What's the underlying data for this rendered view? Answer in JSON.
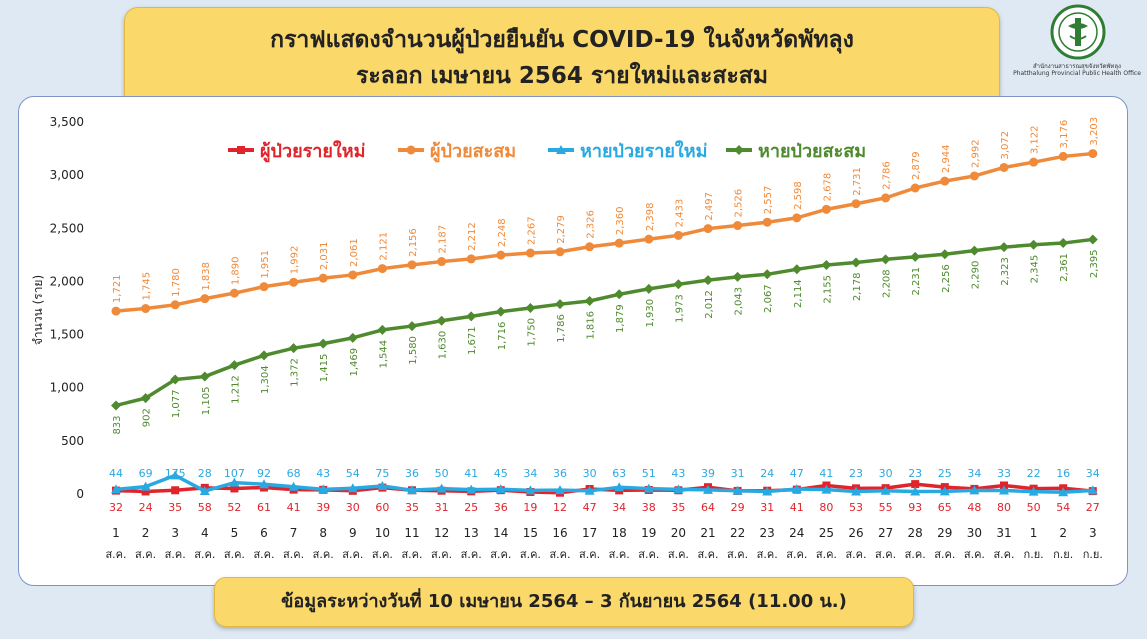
{
  "header": {
    "title_line1": "กราฟแสดงจำนวนผู้ป่วยยืนยัน COVID-19 ในจังหวัดพัทลุง",
    "title_line2": "ระลอก เมษายน 2564 รายใหม่และสะสม"
  },
  "logo": {
    "icon": "public-health-office-seal-icon",
    "caption_th": "สำนักงานสาธารณสุขจังหวัดพัทลุง",
    "caption_en": "Phatthalung Provincial Public Health Office"
  },
  "footer": {
    "text": "ข้อมูลระหว่างวันที่ 10 เมษายน 2564 – 3 กันยายน 2564 (11.00 น.)"
  },
  "chart_data": {
    "type": "line",
    "ylabel": "จำนวน (ราย)",
    "ylim": [
      0,
      3500
    ],
    "yticks": [
      "0",
      "500",
      "1,000",
      "1,500",
      "2,000",
      "2,500",
      "3,000",
      "3,500"
    ],
    "ytick_values": [
      0,
      500,
      1000,
      1500,
      2000,
      2500,
      3000,
      3500
    ],
    "categories_day": [
      "1",
      "2",
      "3",
      "4",
      "5",
      "6",
      "7",
      "8",
      "9",
      "10",
      "11",
      "12",
      "13",
      "14",
      "15",
      "16",
      "17",
      "18",
      "19",
      "20",
      "21",
      "22",
      "23",
      "24",
      "25",
      "26",
      "27",
      "28",
      "29",
      "30",
      "31",
      "1",
      "2",
      "3"
    ],
    "categories_month": [
      "ส.ค.",
      "ส.ค.",
      "ส.ค.",
      "ส.ค.",
      "ส.ค.",
      "ส.ค.",
      "ส.ค.",
      "ส.ค.",
      "ส.ค.",
      "ส.ค.",
      "ส.ค.",
      "ส.ค.",
      "ส.ค.",
      "ส.ค.",
      "ส.ค.",
      "ส.ค.",
      "ส.ค.",
      "ส.ค.",
      "ส.ค.",
      "ส.ค.",
      "ส.ค.",
      "ส.ค.",
      "ส.ค.",
      "ส.ค.",
      "ส.ค.",
      "ส.ค.",
      "ส.ค.",
      "ส.ค.",
      "ส.ค.",
      "ส.ค.",
      "ส.ค.",
      "ก.ย.",
      "ก.ย.",
      "ก.ย."
    ],
    "legend_position": "top",
    "grid": false,
    "series": [
      {
        "name": "ผู้ป่วยรายใหม่",
        "color": "#e0242b",
        "marker": "square",
        "values": [
          32,
          24,
          35,
          58,
          52,
          61,
          41,
          39,
          30,
          60,
          35,
          31,
          25,
          36,
          19,
          12,
          47,
          34,
          38,
          35,
          64,
          29,
          31,
          41,
          80,
          53,
          55,
          93,
          65,
          48,
          80,
          50,
          54,
          27
        ],
        "labels": [
          "32",
          "24",
          "35",
          "58",
          "52",
          "61",
          "41",
          "39",
          "30",
          "60",
          "35",
          "31",
          "25",
          "36",
          "19",
          "12",
          "47",
          "34",
          "38",
          "35",
          "64",
          "29",
          "31",
          "41",
          "80",
          "53",
          "55",
          "93",
          "65",
          "48",
          "80",
          "50",
          "54",
          "27"
        ]
      },
      {
        "name": "ผู้ป่วยสะสม",
        "color": "#ef8a3a",
        "marker": "circle",
        "values": [
          1721,
          1745,
          1780,
          1838,
          1890,
          1951,
          1992,
          2031,
          2061,
          2121,
          2156,
          2187,
          2212,
          2248,
          2267,
          2279,
          2326,
          2360,
          2398,
          2433,
          2497,
          2526,
          2557,
          2598,
          2678,
          2731,
          2786,
          2879,
          2944,
          2992,
          3072,
          3122,
          3176,
          3203
        ],
        "labels": [
          "1,721",
          "1,745",
          "1,780",
          "1,838",
          "1,890",
          "1,951",
          "1,992",
          "2,031",
          "2,061",
          "2,121",
          "2,156",
          "2,187",
          "2,212",
          "2,248",
          "2,267",
          "2,279",
          "2,326",
          "2,360",
          "2,398",
          "2,433",
          "2,497",
          "2,526",
          "2,557",
          "2,598",
          "2,678",
          "2,731",
          "2,786",
          "2,879",
          "2,944",
          "2,992",
          "3,072",
          "3,122",
          "3,176",
          "3,203"
        ]
      },
      {
        "name": "หายป่วยรายใหม่",
        "color": "#29a9e1",
        "marker": "triangle",
        "values": [
          44,
          69,
          175,
          28,
          107,
          92,
          68,
          43,
          54,
          75,
          36,
          50,
          41,
          45,
          34,
          36,
          30,
          63,
          51,
          43,
          39,
          31,
          24,
          47,
          41,
          23,
          30,
          23,
          25,
          34,
          33,
          22,
          16,
          34
        ],
        "labels": [
          "44",
          "69",
          "175",
          "28",
          "107",
          "92",
          "68",
          "43",
          "54",
          "75",
          "36",
          "50",
          "41",
          "45",
          "34",
          "36",
          "30",
          "63",
          "51",
          "43",
          "39",
          "31",
          "24",
          "47",
          "41",
          "23",
          "30",
          "23",
          "25",
          "34",
          "33",
          "22",
          "16",
          "34"
        ]
      },
      {
        "name": "หายป่วยสะสม",
        "color": "#4f8a2e",
        "marker": "diamond",
        "values": [
          833,
          902,
          1077,
          1105,
          1212,
          1304,
          1372,
          1415,
          1469,
          1544,
          1580,
          1630,
          1671,
          1716,
          1750,
          1786,
          1816,
          1879,
          1930,
          1973,
          2012,
          2043,
          2067,
          2114,
          2155,
          2178,
          2208,
          2231,
          2256,
          2290,
          2323,
          2345,
          2361,
          2395
        ],
        "labels": [
          "833",
          "902",
          "1,077",
          "1,105",
          "1,212",
          "1,304",
          "1,372",
          "1,415",
          "1,469",
          "1,544",
          "1,580",
          "1,630",
          "1,671",
          "1,716",
          "1,750",
          "1,786",
          "1,816",
          "1,879",
          "1,930",
          "1,973",
          "2,012",
          "2,043",
          "2,067",
          "2,114",
          "2,155",
          "2,178",
          "2,208",
          "2,231",
          "2,256",
          "2,290",
          "2,323",
          "2,345",
          "2,361",
          "2,395"
        ]
      }
    ]
  }
}
